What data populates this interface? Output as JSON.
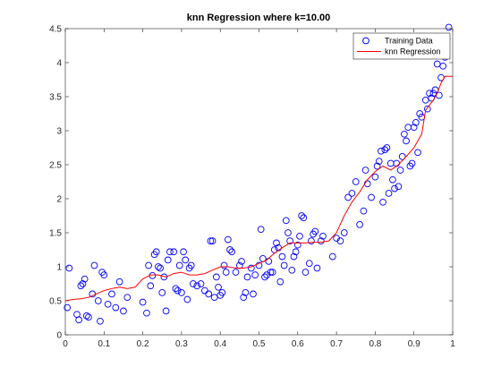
{
  "chart_data": {
    "type": "scatter",
    "title": "knn Regression where k=10.00",
    "xlabel": "",
    "ylabel": "",
    "xlim": [
      0,
      1
    ],
    "ylim": [
      0,
      4.5
    ],
    "x_ticks": [
      "0",
      "0.1",
      "0.2",
      "0.3",
      "0.4",
      "0.5",
      "0.6",
      "0.7",
      "0.8",
      "0.9",
      "1"
    ],
    "y_ticks": [
      "0",
      "0.5",
      "1",
      "1.5",
      "2",
      "2.5",
      "3",
      "3.5",
      "4",
      "4.5"
    ],
    "grid": false,
    "legend_position": "top-right",
    "colors": {
      "training": "#0000ff",
      "regression": "#ff0000"
    },
    "series": [
      {
        "name": "Training Data",
        "type": "scatter",
        "points": [
          [
            0.005,
            0.4
          ],
          [
            0.01,
            0.98
          ],
          [
            0.03,
            0.3
          ],
          [
            0.035,
            0.22
          ],
          [
            0.04,
            0.72
          ],
          [
            0.045,
            0.75
          ],
          [
            0.05,
            0.82
          ],
          [
            0.055,
            0.28
          ],
          [
            0.06,
            0.26
          ],
          [
            0.07,
            0.6
          ],
          [
            0.075,
            1.02
          ],
          [
            0.085,
            0.5
          ],
          [
            0.09,
            0.2
          ],
          [
            0.095,
            0.92
          ],
          [
            0.1,
            0.88
          ],
          [
            0.11,
            0.45
          ],
          [
            0.12,
            0.6
          ],
          [
            0.13,
            0.4
          ],
          [
            0.14,
            0.78
          ],
          [
            0.15,
            0.35
          ],
          [
            0.16,
            0.55
          ],
          [
            0.2,
            0.48
          ],
          [
            0.21,
            0.32
          ],
          [
            0.215,
            1.02
          ],
          [
            0.22,
            0.72
          ],
          [
            0.225,
            0.87
          ],
          [
            0.23,
            1.18
          ],
          [
            0.235,
            1.22
          ],
          [
            0.24,
            1.0
          ],
          [
            0.245,
            0.98
          ],
          [
            0.25,
            0.62
          ],
          [
            0.255,
            0.85
          ],
          [
            0.26,
            0.35
          ],
          [
            0.265,
            1.1
          ],
          [
            0.27,
            1.22
          ],
          [
            0.28,
            1.22
          ],
          [
            0.285,
            0.68
          ],
          [
            0.29,
            0.65
          ],
          [
            0.295,
            1.02
          ],
          [
            0.3,
            0.62
          ],
          [
            0.305,
            1.22
          ],
          [
            0.31,
            1.1
          ],
          [
            0.315,
            0.52
          ],
          [
            0.32,
            0.98
          ],
          [
            0.325,
            1.02
          ],
          [
            0.33,
            0.75
          ],
          [
            0.34,
            0.72
          ],
          [
            0.35,
            0.75
          ],
          [
            0.36,
            0.65
          ],
          [
            0.37,
            0.6
          ],
          [
            0.375,
            1.38
          ],
          [
            0.38,
            1.38
          ],
          [
            0.385,
            0.55
          ],
          [
            0.39,
            0.85
          ],
          [
            0.395,
            0.7
          ],
          [
            0.4,
            0.58
          ],
          [
            0.405,
            0.62
          ],
          [
            0.41,
            1.02
          ],
          [
            0.415,
            0.92
          ],
          [
            0.42,
            1.4
          ],
          [
            0.425,
            1.25
          ],
          [
            0.43,
            1.22
          ],
          [
            0.44,
            0.92
          ],
          [
            0.45,
            1.02
          ],
          [
            0.455,
            1.08
          ],
          [
            0.46,
            0.55
          ],
          [
            0.465,
            0.62
          ],
          [
            0.47,
            0.85
          ],
          [
            0.48,
            0.98
          ],
          [
            0.485,
            0.6
          ],
          [
            0.49,
            0.88
          ],
          [
            0.5,
            1.02
          ],
          [
            0.505,
            1.55
          ],
          [
            0.51,
            1.12
          ],
          [
            0.515,
            0.85
          ],
          [
            0.52,
            0.88
          ],
          [
            0.525,
            1.08
          ],
          [
            0.53,
            0.92
          ],
          [
            0.535,
            0.92
          ],
          [
            0.54,
            1.25
          ],
          [
            0.545,
            1.35
          ],
          [
            0.55,
            1.28
          ],
          [
            0.555,
            0.78
          ],
          [
            0.56,
            1.15
          ],
          [
            0.565,
            1.02
          ],
          [
            0.57,
            1.68
          ],
          [
            0.575,
            1.5
          ],
          [
            0.58,
            1.38
          ],
          [
            0.585,
            0.95
          ],
          [
            0.59,
            1.15
          ],
          [
            0.595,
            1.22
          ],
          [
            0.6,
            1.32
          ],
          [
            0.605,
            1.45
          ],
          [
            0.61,
            1.75
          ],
          [
            0.615,
            1.72
          ],
          [
            0.62,
            0.92
          ],
          [
            0.63,
            1.05
          ],
          [
            0.635,
            1.38
          ],
          [
            0.64,
            1.48
          ],
          [
            0.645,
            1.52
          ],
          [
            0.65,
            0.98
          ],
          [
            0.66,
            1.38
          ],
          [
            0.665,
            1.45
          ],
          [
            0.69,
            1.15
          ],
          [
            0.7,
            1.42
          ],
          [
            0.71,
            1.38
          ],
          [
            0.72,
            1.5
          ],
          [
            0.73,
            2.02
          ],
          [
            0.74,
            2.08
          ],
          [
            0.75,
            2.25
          ],
          [
            0.76,
            1.62
          ],
          [
            0.77,
            1.82
          ],
          [
            0.775,
            2.42
          ],
          [
            0.78,
            2.22
          ],
          [
            0.79,
            2.02
          ],
          [
            0.8,
            2.32
          ],
          [
            0.805,
            2.48
          ],
          [
            0.81,
            2.55
          ],
          [
            0.815,
            2.7
          ],
          [
            0.82,
            1.95
          ],
          [
            0.825,
            2.72
          ],
          [
            0.83,
            2.75
          ],
          [
            0.835,
            2.08
          ],
          [
            0.84,
            2.52
          ],
          [
            0.845,
            2.28
          ],
          [
            0.85,
            2.15
          ],
          [
            0.855,
            2.52
          ],
          [
            0.86,
            2.18
          ],
          [
            0.865,
            2.42
          ],
          [
            0.87,
            2.62
          ],
          [
            0.875,
            2.95
          ],
          [
            0.88,
            2.85
          ],
          [
            0.885,
            3.05
          ],
          [
            0.89,
            2.48
          ],
          [
            0.895,
            2.52
          ],
          [
            0.9,
            3.05
          ],
          [
            0.905,
            3.12
          ],
          [
            0.91,
            2.68
          ],
          [
            0.915,
            3.25
          ],
          [
            0.92,
            3.2
          ],
          [
            0.93,
            3.45
          ],
          [
            0.935,
            3.32
          ],
          [
            0.94,
            3.55
          ],
          [
            0.945,
            3.48
          ],
          [
            0.95,
            3.55
          ],
          [
            0.955,
            3.6
          ],
          [
            0.96,
            3.98
          ],
          [
            0.965,
            3.52
          ],
          [
            0.97,
            3.78
          ],
          [
            0.975,
            3.95
          ],
          [
            0.98,
            4.08
          ],
          [
            0.985,
            4.35
          ],
          [
            0.99,
            4.52
          ]
        ]
      },
      {
        "name": "knn Regression",
        "type": "line",
        "points": [
          [
            0.0,
            0.5
          ],
          [
            0.02,
            0.52
          ],
          [
            0.04,
            0.53
          ],
          [
            0.06,
            0.55
          ],
          [
            0.08,
            0.6
          ],
          [
            0.1,
            0.65
          ],
          [
            0.12,
            0.68
          ],
          [
            0.14,
            0.7
          ],
          [
            0.16,
            0.68
          ],
          [
            0.18,
            0.7
          ],
          [
            0.2,
            0.82
          ],
          [
            0.22,
            0.88
          ],
          [
            0.24,
            0.88
          ],
          [
            0.26,
            0.85
          ],
          [
            0.28,
            0.9
          ],
          [
            0.3,
            0.92
          ],
          [
            0.32,
            0.88
          ],
          [
            0.34,
            0.88
          ],
          [
            0.36,
            0.9
          ],
          [
            0.38,
            0.95
          ],
          [
            0.4,
            1.0
          ],
          [
            0.42,
            1.0
          ],
          [
            0.44,
            0.98
          ],
          [
            0.46,
            0.98
          ],
          [
            0.48,
            1.0
          ],
          [
            0.5,
            1.05
          ],
          [
            0.52,
            1.1
          ],
          [
            0.54,
            1.2
          ],
          [
            0.56,
            1.28
          ],
          [
            0.58,
            1.35
          ],
          [
            0.6,
            1.35
          ],
          [
            0.62,
            1.35
          ],
          [
            0.64,
            1.36
          ],
          [
            0.66,
            1.36
          ],
          [
            0.68,
            1.38
          ],
          [
            0.7,
            1.5
          ],
          [
            0.72,
            1.75
          ],
          [
            0.74,
            1.95
          ],
          [
            0.76,
            2.1
          ],
          [
            0.78,
            2.28
          ],
          [
            0.8,
            2.4
          ],
          [
            0.82,
            2.48
          ],
          [
            0.84,
            2.42
          ],
          [
            0.86,
            2.5
          ],
          [
            0.88,
            2.62
          ],
          [
            0.9,
            2.75
          ],
          [
            0.92,
            2.95
          ],
          [
            0.93,
            3.3
          ],
          [
            0.95,
            3.45
          ],
          [
            0.96,
            3.55
          ],
          [
            0.97,
            3.7
          ],
          [
            0.98,
            3.8
          ],
          [
            1.0,
            3.8
          ]
        ]
      }
    ]
  }
}
